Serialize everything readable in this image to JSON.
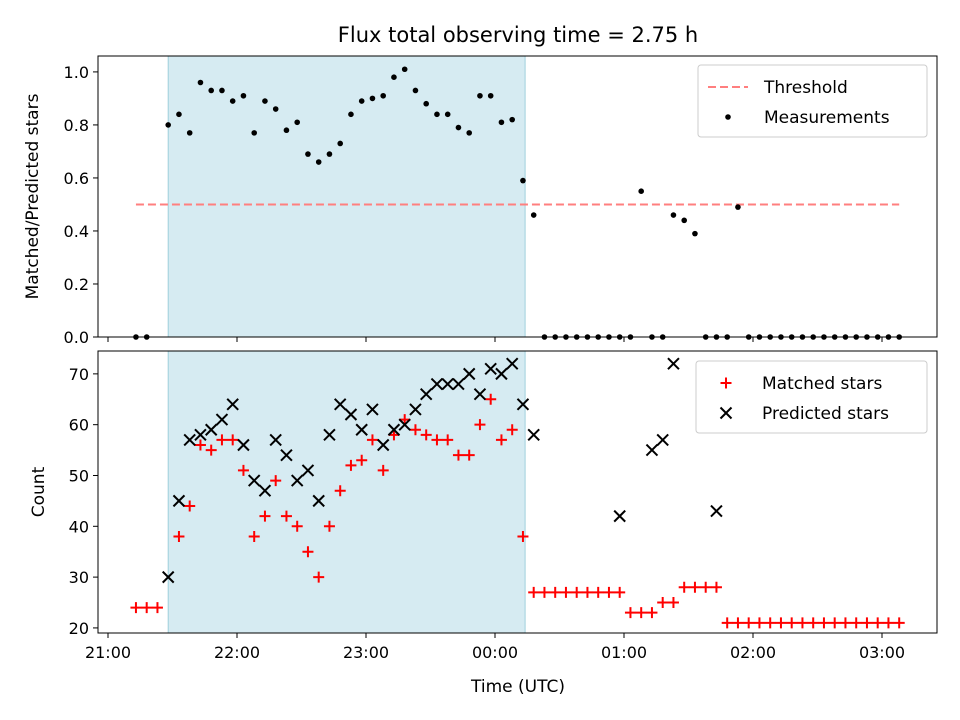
{
  "chart_data": [
    {
      "type": "scatter",
      "title": "Flux total observing time = 2.75 h",
      "xlabel": "",
      "ylabel": "Matched/Predicted stars",
      "ylim": [
        0.0,
        1.06
      ],
      "yticks": [
        "0.0",
        "0.2",
        "0.4",
        "0.6",
        "0.8",
        "1.0"
      ],
      "grid": false,
      "legend_position": "top-right",
      "shaded_span": {
        "start": "21:28",
        "end": "00:14"
      },
      "threshold": {
        "name": "Threshold",
        "value": 0.5,
        "color": "#ff7f7f",
        "style": "dashed"
      },
      "series": [
        {
          "name": "Measurements",
          "color": "#000000",
          "marker": "dot",
          "x": [
            "21:13",
            "21:18",
            "21:28",
            "21:33",
            "21:38",
            "21:43",
            "21:48",
            "21:53",
            "21:58",
            "22:03",
            "22:08",
            "22:13",
            "22:18",
            "22:23",
            "22:28",
            "22:33",
            "22:38",
            "22:43",
            "22:48",
            "22:53",
            "22:58",
            "23:03",
            "23:08",
            "23:13",
            "23:18",
            "23:23",
            "23:28",
            "23:33",
            "23:38",
            "23:43",
            "23:48",
            "23:53",
            "23:58",
            "00:03",
            "00:08",
            "00:13",
            "00:18",
            "00:23",
            "00:28",
            "00:33",
            "00:38",
            "00:43",
            "00:48",
            "00:53",
            "00:58",
            "01:03",
            "01:08",
            "01:13",
            "01:18",
            "01:23",
            "01:28",
            "01:33",
            "01:38",
            "01:43",
            "01:48",
            "01:53",
            "01:58",
            "02:03",
            "02:08",
            "02:13",
            "02:18",
            "02:23",
            "02:28",
            "02:33",
            "02:38",
            "02:43",
            "02:48",
            "02:53",
            "02:58",
            "03:03",
            "03:08"
          ],
          "y": [
            0.0,
            0.0,
            0.8,
            0.84,
            0.77,
            0.96,
            0.93,
            0.93,
            0.89,
            0.91,
            0.77,
            0.89,
            0.86,
            0.78,
            0.81,
            0.69,
            0.66,
            0.69,
            0.73,
            0.84,
            0.89,
            0.9,
            0.91,
            0.98,
            1.01,
            0.93,
            0.88,
            0.84,
            0.84,
            0.79,
            0.77,
            0.91,
            0.91,
            0.81,
            0.82,
            0.59,
            0.46,
            0.0,
            0.0,
            0.0,
            0.0,
            0.0,
            0.0,
            0.0,
            0.0,
            0.0,
            0.55,
            0.0,
            0.0,
            0.46,
            0.44,
            0.39,
            0.0,
            0.0,
            0.0,
            0.49,
            0.0,
            0.0,
            0.0,
            0.0,
            0.0,
            0.0,
            0.0,
            0.0,
            0.0,
            0.0,
            0.0,
            0.0,
            0.0,
            0.0,
            0.0
          ]
        }
      ]
    },
    {
      "type": "scatter",
      "xlabel": "Time (UTC)",
      "ylabel": "Count",
      "ylim": [
        19,
        74.5
      ],
      "yticks": [
        "20",
        "30",
        "40",
        "50",
        "60",
        "70"
      ],
      "xticks": [
        "21:00",
        "22:00",
        "23:00",
        "00:00",
        "01:00",
        "02:00",
        "03:00"
      ],
      "grid": false,
      "legend_position": "top-right",
      "series": [
        {
          "name": "Matched stars",
          "color": "#ff0000",
          "marker": "plus",
          "x": [
            "21:13",
            "21:18",
            "21:23",
            "21:33",
            "21:38",
            "21:43",
            "21:48",
            "21:53",
            "21:58",
            "22:03",
            "22:08",
            "22:13",
            "22:18",
            "22:23",
            "22:28",
            "22:33",
            "22:38",
            "22:43",
            "22:48",
            "22:53",
            "22:58",
            "23:03",
            "23:08",
            "23:13",
            "23:18",
            "23:23",
            "23:28",
            "23:33",
            "23:38",
            "23:43",
            "23:48",
            "23:53",
            "23:58",
            "00:03",
            "00:08",
            "00:13",
            "00:18",
            "00:23",
            "00:28",
            "00:33",
            "00:38",
            "00:43",
            "00:48",
            "00:53",
            "00:58",
            "01:03",
            "01:08",
            "01:13",
            "01:18",
            "01:23",
            "01:28",
            "01:33",
            "01:38",
            "01:43",
            "01:48",
            "01:53",
            "01:58",
            "02:03",
            "02:08",
            "02:13",
            "02:18",
            "02:23",
            "02:28",
            "02:33",
            "02:38",
            "02:43",
            "02:48",
            "02:53",
            "02:58",
            "03:03",
            "03:08"
          ],
          "y": [
            24,
            24,
            24,
            38,
            44,
            56,
            55,
            57,
            57,
            51,
            38,
            42,
            49,
            42,
            40,
            35,
            30,
            40,
            47,
            52,
            53,
            57,
            51,
            58,
            61,
            59,
            58,
            57,
            57,
            54,
            54,
            60,
            65,
            57,
            59,
            38,
            27,
            27,
            27,
            27,
            27,
            27,
            27,
            27,
            27,
            23,
            23,
            23,
            25,
            25,
            28,
            28,
            28,
            28,
            21,
            21,
            21,
            21,
            21,
            21,
            21,
            21,
            21,
            21,
            21,
            21,
            21,
            21,
            21,
            21,
            21
          ]
        },
        {
          "name": "Predicted stars",
          "color": "#000000",
          "marker": "x",
          "x": [
            "21:28",
            "21:33",
            "21:38",
            "21:43",
            "21:48",
            "21:53",
            "21:58",
            "22:03",
            "22:08",
            "22:13",
            "22:18",
            "22:23",
            "22:28",
            "22:33",
            "22:38",
            "22:43",
            "22:48",
            "22:53",
            "22:58",
            "23:03",
            "23:08",
            "23:13",
            "23:18",
            "23:23",
            "23:28",
            "23:33",
            "23:38",
            "23:43",
            "23:48",
            "23:53",
            "23:58",
            "00:03",
            "00:08",
            "00:13",
            "00:18",
            "00:58",
            "01:13",
            "01:18",
            "01:23",
            "01:43"
          ],
          "y": [
            30,
            45,
            57,
            58,
            59,
            61,
            64,
            56,
            49,
            47,
            57,
            54,
            49,
            51,
            45,
            58,
            64,
            62,
            59,
            63,
            56,
            59,
            60,
            63,
            66,
            68,
            68,
            68,
            70,
            66,
            71,
            70,
            72,
            64,
            58,
            42,
            55,
            57,
            72,
            43
          ]
        }
      ]
    }
  ]
}
